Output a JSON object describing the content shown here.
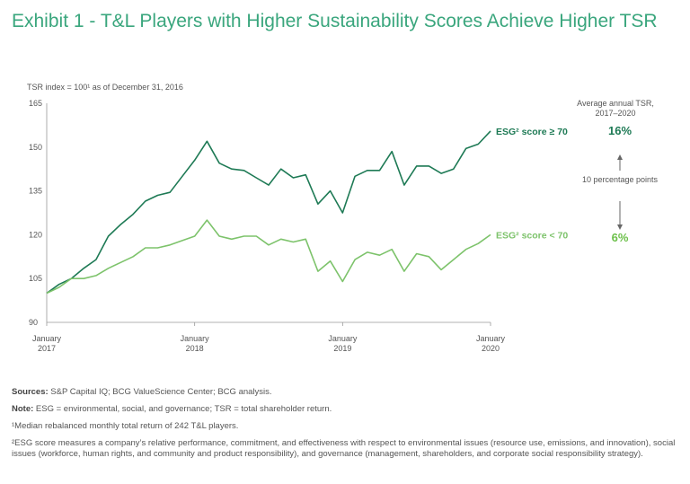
{
  "title": "Exhibit 1 - T&L Players with Higher Sustainability Scores Achieve Higher TSR",
  "chart_data": {
    "type": "line",
    "subtitle": "TSR index = 100¹ as of December 31, 2016",
    "ylim": [
      90,
      165
    ],
    "yticks": [
      "165",
      "150",
      "135",
      "120",
      "105",
      "90"
    ],
    "ytick_values": [
      165,
      150,
      135,
      120,
      105,
      90
    ],
    "xticks": [
      {
        "month": "January",
        "year": "2017",
        "index": 0
      },
      {
        "month": "January",
        "year": "2018",
        "index": 12
      },
      {
        "month": "January",
        "year": "2019",
        "index": 24
      },
      {
        "month": "January",
        "year": "2020",
        "index": 36
      }
    ],
    "x_count": 37,
    "series": [
      {
        "name": "ESG² score ≥ 70",
        "color": "#1e7a55",
        "values": [
          100,
          103,
          105,
          108.5,
          111.5,
          119.5,
          123.5,
          127,
          131.5,
          133.5,
          134.5,
          140,
          145.5,
          152,
          144.5,
          142.5,
          142,
          139.5,
          137,
          142.5,
          139.5,
          140.5,
          130.5,
          135,
          127.5,
          140,
          142,
          142,
          148.5,
          137,
          143.5,
          143.5,
          141,
          142.5,
          149.5,
          151,
          155.5
        ]
      },
      {
        "name": "ESG² score < 70",
        "color": "#7dc36b",
        "values": [
          100,
          102,
          105,
          105,
          106,
          108.5,
          110.5,
          112.5,
          115.5,
          115.5,
          116.5,
          118,
          119.5,
          125,
          119.5,
          118.5,
          119.5,
          119.5,
          116.5,
          118.5,
          117.5,
          118.5,
          107.5,
          111,
          104,
          111.5,
          114,
          113,
          115,
          107.5,
          113.5,
          112.5,
          108,
          111.5,
          115,
          117,
          120
        ]
      }
    ]
  },
  "side_panel": {
    "header": "Average annual TSR, 2017–2020",
    "value_high": "16%",
    "value_low": "6%",
    "difference": "10 percentage points"
  },
  "notes": {
    "sources_label": "Sources:",
    "sources_text": "S&P Capital IQ; BCG ValueScience Center; BCG analysis.",
    "note_label": "Note:",
    "note_text": "ESG = environmental, social, and governance; TSR = total shareholder return.",
    "footnote1": "¹Median rebalanced monthly total return of 242 T&L players.",
    "footnote2": "²ESG score measures a company’s relative performance, commitment, and effectiveness with respect to environmental issues (resource use, emissions, and innovation), social issues (workforce, human rights, and community and product responsibility), and governance (management, shareholders, and corporate social responsibility strategy)."
  },
  "colors": {
    "title": "#3aa67d",
    "high": "#1e7a55",
    "low": "#7dc36b"
  }
}
